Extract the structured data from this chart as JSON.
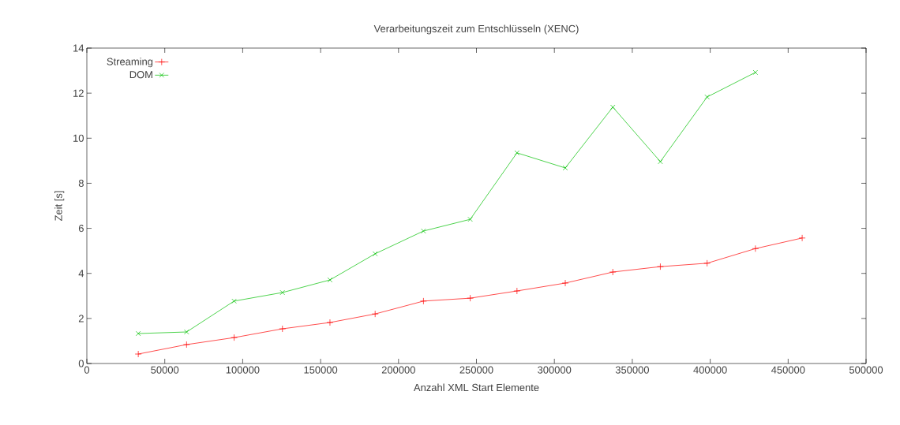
{
  "chart_data": {
    "type": "line",
    "title": "Verarbeitungszeit zum Entschlüsseln (XENC)",
    "xlabel": "Anzahl XML Start Elemente",
    "ylabel": "Zeit [s]",
    "xlim": [
      0,
      500000
    ],
    "ylim": [
      0,
      14
    ],
    "xticks": [
      0,
      50000,
      100000,
      150000,
      200000,
      250000,
      300000,
      350000,
      400000,
      450000,
      500000
    ],
    "yticks": [
      0,
      2,
      4,
      6,
      8,
      10,
      12,
      14
    ],
    "legend": "top left",
    "grid": false,
    "series": [
      {
        "name": "Streaming",
        "color": "#ff0000",
        "marker": "plus",
        "x": [
          33000,
          64000,
          94500,
          125500,
          156000,
          185000,
          216000,
          246000,
          276000,
          307000,
          337500,
          368000,
          398000,
          429000,
          459000
        ],
        "values": [
          0.42,
          0.84,
          1.15,
          1.54,
          1.82,
          2.2,
          2.77,
          2.9,
          3.22,
          3.57,
          4.06,
          4.3,
          4.45,
          5.1,
          5.57
        ]
      },
      {
        "name": "DOM",
        "color": "#00c000",
        "marker": "cross",
        "x": [
          33000,
          64000,
          94500,
          125500,
          156000,
          185000,
          216000,
          246000,
          276000,
          307000,
          337500,
          368000,
          398000,
          429000
        ],
        "values": [
          1.33,
          1.4,
          2.77,
          3.15,
          3.71,
          4.87,
          5.88,
          6.4,
          9.35,
          8.68,
          11.38,
          8.96,
          11.83,
          12.92
        ]
      }
    ]
  }
}
